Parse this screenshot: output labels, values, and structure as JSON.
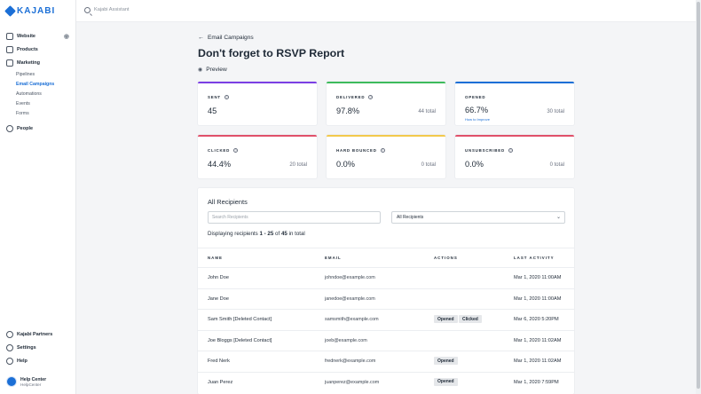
{
  "brand": {
    "logo_text": "KAJABI",
    "accent": "#1b6fd6"
  },
  "search": {
    "placeholder": "Kajabi Assistant"
  },
  "sidebar": {
    "items": [
      {
        "label": "Website",
        "icon": "monitor-icon"
      },
      {
        "label": "Products",
        "icon": "box-icon"
      },
      {
        "label": "Marketing",
        "icon": "megaphone-icon"
      }
    ],
    "marketing_sub": [
      "Pipelines",
      "Email Campaigns",
      "Automations",
      "Events",
      "Forms"
    ],
    "people": "People",
    "bottom": [
      {
        "label": "Kajabi Partners",
        "icon": "partners-icon"
      },
      {
        "label": "Settings",
        "icon": "gear-icon"
      },
      {
        "label": "Help",
        "icon": "help-icon"
      }
    ],
    "help_center": {
      "title": "Help Center",
      "subtitle": "HelpCenter"
    }
  },
  "page": {
    "back_label": "Email Campaigns",
    "title": "Don't forget to RSVP Report",
    "preview_label": "Preview"
  },
  "stats": [
    {
      "label": "SENT",
      "value": "45",
      "total": "",
      "color": "#7b3fe4"
    },
    {
      "label": "DELIVERED",
      "value": "97.8%",
      "total": "44 total",
      "color": "#3dbb5c"
    },
    {
      "label": "OPENED",
      "value": "66.7%",
      "total": "30 total",
      "color": "#1b6fd6",
      "link": "How to Improve"
    },
    {
      "label": "CLICKED",
      "value": "44.4%",
      "total": "20 total",
      "color": "#e0506a"
    },
    {
      "label": "HARD BOUNCED",
      "value": "0.0%",
      "total": "0 total",
      "color": "#f2c94c"
    },
    {
      "label": "UNSUBSCRIBED",
      "value": "0.0%",
      "total": "0 total",
      "color": "#e0506a"
    }
  ],
  "recipients": {
    "heading": "All Recipients",
    "search_placeholder": "Search Recipients",
    "filter_value": "All Recipients",
    "display_prefix": "Displaying recipients",
    "display_range": "1 - 25",
    "display_of": "of",
    "display_count": "45",
    "display_suffix": "in total",
    "columns": [
      "NAME",
      "EMAIL",
      "ACTIONS",
      "LAST ACTIVITY"
    ],
    "rows": [
      {
        "name": "John Doe",
        "email": "johndoe@example.com",
        "actions": [],
        "last": "Mar 1, 2020 11:00AM"
      },
      {
        "name": "Jane Doe",
        "email": "janedoe@example.com",
        "actions": [],
        "last": "Mar 1, 2020 11:00AM"
      },
      {
        "name": "Sam Smith [Deleted Contact]",
        "email": "samsmith@example.com",
        "actions": [
          "Opened",
          "Clicked"
        ],
        "last": "Mar 6, 2020 5:20PM"
      },
      {
        "name": "Joe Bloggs [Deleted Contact]",
        "email": "joeb@example.com",
        "actions": [],
        "last": "Mar 1, 2020 11:02AM"
      },
      {
        "name": "Fred Nerk",
        "email": "frednerk@example.com",
        "actions": [
          "Opened"
        ],
        "last": "Mar 1, 2020 11:02AM"
      },
      {
        "name": "Juan Perez",
        "email": "juanperez@example.com",
        "actions": [
          "Opened"
        ],
        "last": "Mar 1, 2020 7:59PM"
      }
    ]
  }
}
